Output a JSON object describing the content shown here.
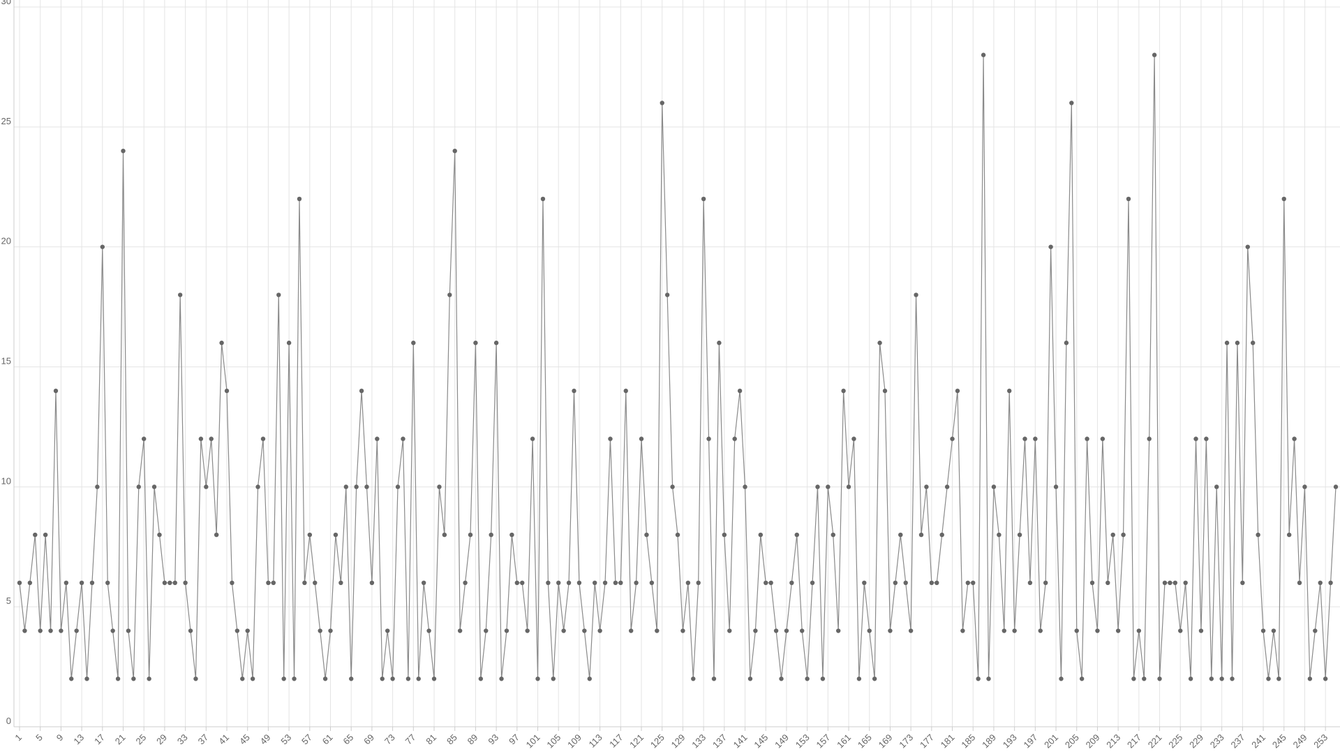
{
  "chart_data": {
    "type": "line",
    "x": [
      1,
      2,
      3,
      4,
      5,
      6,
      7,
      8,
      9,
      10,
      11,
      12,
      13,
      14,
      15,
      16,
      17,
      18,
      19,
      20,
      21,
      22,
      23,
      24,
      25,
      26,
      27,
      28,
      29,
      30,
      31,
      32,
      33,
      34,
      35,
      36,
      37,
      38,
      39,
      40,
      41,
      42,
      43,
      44,
      45,
      46,
      47,
      48,
      49,
      50,
      51,
      52,
      53,
      54,
      55,
      56,
      57,
      58,
      59,
      60,
      61,
      62,
      63,
      64,
      65,
      66,
      67,
      68,
      69,
      70,
      71,
      72,
      73,
      74,
      75,
      76,
      77,
      78,
      79,
      80,
      81,
      82,
      83,
      84,
      85,
      86,
      87,
      88,
      89,
      90,
      91,
      92,
      93,
      94,
      95,
      96,
      97,
      98,
      99,
      100,
      101,
      102,
      103,
      104,
      105,
      106,
      107,
      108,
      109,
      110,
      111,
      112,
      113,
      114,
      115,
      116,
      117,
      118,
      119,
      120,
      121,
      122,
      123,
      124,
      125,
      126,
      127,
      128,
      129,
      130,
      131,
      132,
      133,
      134,
      135,
      136,
      137,
      138,
      139,
      140,
      141,
      142,
      143,
      144,
      145,
      146,
      147,
      148,
      149,
      150,
      151,
      152,
      153,
      154,
      155,
      156,
      157,
      158,
      159,
      160,
      161,
      162,
      163,
      164,
      165,
      166,
      167,
      168,
      169,
      170,
      171,
      172,
      173,
      174,
      175,
      176,
      177,
      178,
      179,
      180,
      181,
      182,
      183,
      184,
      185,
      186,
      187,
      188,
      189,
      190,
      191,
      192,
      193,
      194,
      195,
      196,
      197,
      198,
      199,
      200,
      201,
      202,
      203,
      204,
      205,
      206,
      207,
      208,
      209,
      210,
      211,
      212,
      213,
      214,
      215,
      216,
      217,
      218,
      219,
      220,
      221,
      222,
      223,
      224,
      225,
      226,
      227,
      228,
      229,
      230,
      231,
      232,
      233,
      234,
      235,
      236,
      237,
      238,
      239,
      240,
      241,
      242,
      243,
      244,
      245,
      246,
      247,
      248,
      249,
      250,
      251,
      252,
      253,
      254,
      255
    ],
    "series": [
      {
        "color": "#666666",
        "values": [
          6,
          4,
          6,
          8,
          4,
          8,
          4,
          14,
          4,
          6,
          2,
          4,
          6,
          2,
          6,
          10,
          20,
          6,
          4,
          2,
          24,
          4,
          2,
          10,
          12,
          2,
          10,
          8,
          6,
          6,
          6,
          18,
          6,
          4,
          2,
          12,
          10,
          12,
          8,
          16,
          14,
          6,
          4,
          2,
          4,
          2,
          10,
          12,
          6,
          6,
          18,
          2,
          16,
          2,
          22,
          6,
          8,
          6,
          4,
          2,
          4,
          8,
          6,
          10,
          2,
          10,
          14,
          10,
          6,
          12,
          2,
          4,
          2,
          10,
          12,
          2,
          16,
          2,
          6,
          4,
          2,
          10,
          8,
          18,
          24,
          4,
          6,
          8,
          16,
          2,
          4,
          8,
          16,
          2,
          4,
          8,
          6,
          6,
          4,
          12,
          2,
          22,
          6,
          2,
          6,
          4,
          6,
          14,
          6,
          4,
          2,
          6,
          4,
          6,
          12,
          6,
          6,
          14,
          4,
          6,
          12,
          8,
          6,
          4,
          26,
          18,
          10,
          8,
          4,
          6,
          2,
          6,
          22,
          12,
          2,
          16,
          8,
          4,
          12,
          14,
          10,
          2,
          4,
          8,
          6,
          6,
          4,
          2,
          4,
          6,
          8,
          4,
          2,
          6,
          10,
          2,
          10,
          8,
          4,
          14,
          10,
          12,
          2,
          6,
          4,
          2,
          16,
          14,
          4,
          6,
          8,
          6,
          4,
          18,
          8,
          10,
          6,
          6,
          8,
          10,
          12,
          14,
          4,
          6,
          6,
          2,
          28,
          2,
          10,
          8,
          4,
          14,
          4,
          8,
          12,
          6,
          12,
          4,
          6,
          20,
          10,
          2,
          16,
          26,
          4,
          2,
          12,
          6,
          4,
          12,
          6,
          8,
          4,
          8,
          22,
          2,
          4,
          2,
          12,
          28,
          2,
          6,
          6,
          6,
          4,
          6,
          2,
          12,
          4,
          12,
          2,
          10,
          2,
          16,
          2,
          16,
          6,
          20,
          16,
          8,
          4,
          2,
          4,
          2,
          22,
          8,
          12,
          6,
          10,
          2,
          4,
          6,
          2,
          6,
          10
        ]
      }
    ],
    "xlim": [
      1,
      255
    ],
    "xticks": [
      1,
      5,
      9,
      13,
      17,
      21,
      25,
      29,
      33,
      37,
      41,
      45,
      49,
      53,
      57,
      61,
      65,
      69,
      73,
      77,
      81,
      85,
      89,
      93,
      97,
      101,
      105,
      109,
      113,
      117,
      121,
      125,
      129,
      133,
      137,
      141,
      145,
      149,
      153,
      157,
      161,
      165,
      169,
      173,
      177,
      181,
      185,
      189,
      193,
      197,
      201,
      205,
      209,
      213,
      217,
      221,
      225,
      229,
      233,
      237,
      241,
      245,
      249,
      253
    ],
    "ylim": [
      0,
      30
    ],
    "yticks": [
      0,
      5,
      10,
      15,
      20,
      25,
      30
    ],
    "grid": true
  }
}
